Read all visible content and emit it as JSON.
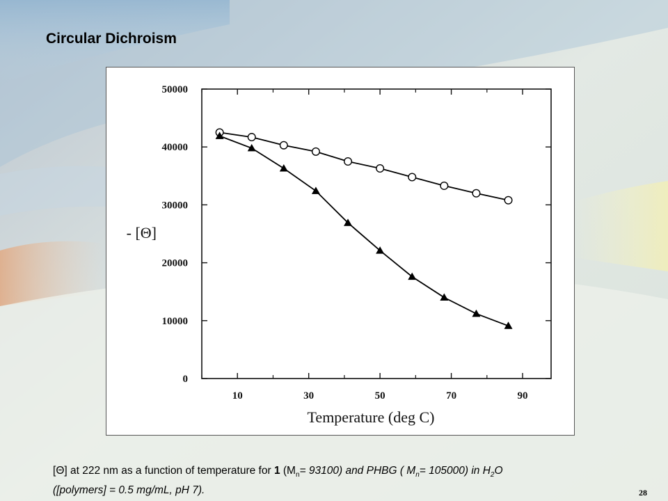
{
  "slide": {
    "title": "Circular Dichroism",
    "page_number": "28",
    "caption": {
      "p1": "[",
      "theta": "Θ",
      "p2": "] at 222 nm as a function of temperature for ",
      "bold1": "1",
      "p3": " (M",
      "sub1": "n",
      "p4": "= 93100) and PHBG ( M",
      "sub2": "n",
      "p5": "= 105000) in H",
      "sub3": "2",
      "p6": "O",
      "line2": "([polymers] = 0.5 mg/mL, pH 7)."
    }
  },
  "chart_data": {
    "type": "line",
    "title": "",
    "xlabel": "Temperature (deg C)",
    "ylabel": "- [Θ]",
    "xlim": [
      0,
      98
    ],
    "ylim": [
      0,
      50000
    ],
    "x_ticks": [
      10,
      30,
      50,
      70,
      90
    ],
    "y_ticks": [
      0,
      10000,
      20000,
      30000,
      40000,
      50000
    ],
    "grid": false,
    "legend": "none",
    "series": [
      {
        "marker": "open-circle",
        "x": [
          5,
          14,
          23,
          32,
          41,
          50,
          59,
          68,
          77,
          86
        ],
        "y": [
          42500,
          41700,
          40300,
          39200,
          37500,
          36300,
          34800,
          33300,
          32000,
          30800
        ]
      },
      {
        "marker": "filled-triangle",
        "x": [
          5,
          14,
          23,
          32,
          41,
          50,
          59,
          68,
          77,
          86
        ],
        "y": [
          41900,
          39800,
          36300,
          32400,
          26900,
          22100,
          17600,
          14000,
          11200,
          9100
        ]
      }
    ],
    "colors": {
      "line": "#000000",
      "axis": "#111111"
    }
  }
}
